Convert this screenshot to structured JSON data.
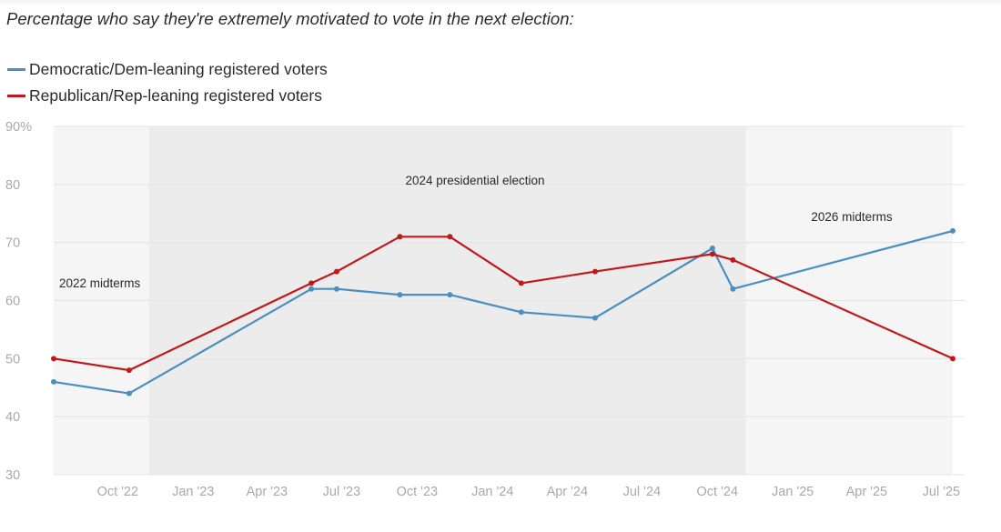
{
  "chart_data": {
    "type": "line",
    "title": "Percentage who say they're extremely motivated to vote in the next election:",
    "xlabel": "",
    "ylabel": "",
    "ylim": [
      30,
      90
    ],
    "y_ticks": [
      30,
      40,
      50,
      60,
      70,
      80,
      90
    ],
    "y_tick_labels": [
      "30",
      "40",
      "50",
      "60",
      "70",
      "80",
      "90%"
    ],
    "x_range": [
      "2022-07-15",
      "2025-07-15"
    ],
    "x_ticks": [
      {
        "date": "2022-10-01",
        "label": "Oct '22"
      },
      {
        "date": "2023-01-01",
        "label": "Jan '23"
      },
      {
        "date": "2023-04-01",
        "label": "Apr '23"
      },
      {
        "date": "2023-07-01",
        "label": "Jul '23"
      },
      {
        "date": "2023-10-01",
        "label": "Oct '23"
      },
      {
        "date": "2024-01-01",
        "label": "Jan '24"
      },
      {
        "date": "2024-04-01",
        "label": "Apr '24"
      },
      {
        "date": "2024-07-01",
        "label": "Jul '24"
      },
      {
        "date": "2024-10-01",
        "label": "Oct '24"
      },
      {
        "date": "2025-01-01",
        "label": "Jan '25"
      },
      {
        "date": "2025-04-01",
        "label": "Apr '25"
      },
      {
        "date": "2025-07-01",
        "label": "Jul '25"
      }
    ],
    "periods": [
      {
        "label": "2022 midterms",
        "start": "2022-07-15",
        "end": "2022-11-08",
        "shade": "#f5f5f5"
      },
      {
        "label": "2024 presidential election",
        "start": "2022-11-08",
        "end": "2024-11-05",
        "shade": "#ececec"
      },
      {
        "label": "2026 midterms",
        "start": "2024-11-05",
        "end": "2025-07-15",
        "shade": "#f5f5f5"
      }
    ],
    "series": [
      {
        "name": "Democratic/Dem-leaning registered voters",
        "color": "#4a8fc0",
        "points": [
          {
            "x": "2022-07-15",
            "y": 46
          },
          {
            "x": "2022-10-15",
            "y": 44
          },
          {
            "x": "2023-05-25",
            "y": 62
          },
          {
            "x": "2023-06-25",
            "y": 62
          },
          {
            "x": "2023-09-10",
            "y": 61
          },
          {
            "x": "2023-11-10",
            "y": 61
          },
          {
            "x": "2024-02-05",
            "y": 58
          },
          {
            "x": "2024-05-05",
            "y": 57
          },
          {
            "x": "2024-09-25",
            "y": 69
          },
          {
            "x": "2024-10-20",
            "y": 62
          },
          {
            "x": "2025-07-15",
            "y": 72
          }
        ]
      },
      {
        "name": "Republican/Rep-leaning registered voters",
        "color": "#c0191d",
        "points": [
          {
            "x": "2022-07-15",
            "y": 50
          },
          {
            "x": "2022-10-15",
            "y": 48
          },
          {
            "x": "2023-05-25",
            "y": 63
          },
          {
            "x": "2023-06-25",
            "y": 65
          },
          {
            "x": "2023-09-10",
            "y": 71
          },
          {
            "x": "2023-11-10",
            "y": 71
          },
          {
            "x": "2024-02-05",
            "y": 63
          },
          {
            "x": "2024-05-05",
            "y": 65
          },
          {
            "x": "2024-09-25",
            "y": 68
          },
          {
            "x": "2024-10-20",
            "y": 67
          },
          {
            "x": "2025-07-15",
            "y": 50
          }
        ]
      }
    ],
    "colors": {
      "background": "#ffffff",
      "gridline": "#e4e4e4",
      "tick_label": "#a9a9a9",
      "annotation": "#2a2a2a"
    }
  }
}
